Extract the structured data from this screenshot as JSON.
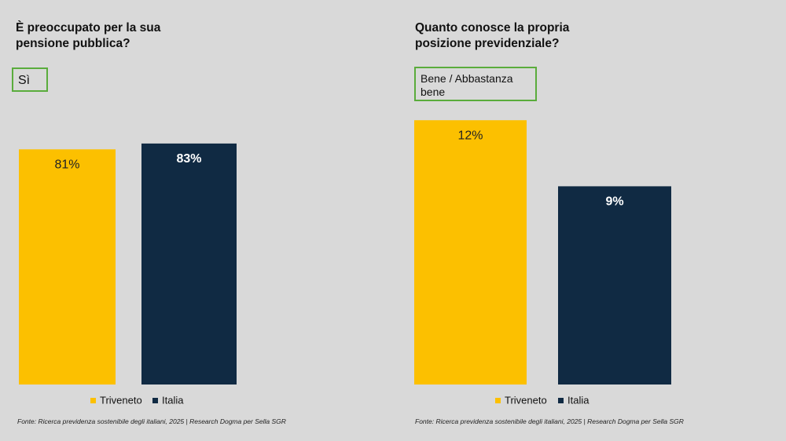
{
  "chart_data": [
    {
      "type": "bar",
      "title": "È preoccupato per la sua pensione pubblica?",
      "annotation": "Sì",
      "categories": [
        null
      ],
      "series": [
        {
          "name": "Triveneto",
          "color": "#fcc000",
          "values": [
            81
          ],
          "value_labels": [
            "81%"
          ]
        },
        {
          "name": "Italia",
          "color": "#102a43",
          "values": [
            83
          ],
          "value_labels": [
            "83%"
          ]
        }
      ],
      "ylim": [
        0,
        100
      ],
      "source": "Fonte: Ricerca previdenza sostenibile degli italiani, 2025 | Research Dogma per Sella SGR"
    },
    {
      "type": "bar",
      "title": "Quanto conosce la propria posizione previdenziale?",
      "annotation": "Bene / Abbastanza bene",
      "categories": [
        null
      ],
      "series": [
        {
          "name": "Triveneto",
          "color": "#fcc000",
          "values": [
            12
          ],
          "value_labels": [
            "12%"
          ]
        },
        {
          "name": "Italia",
          "color": "#102a43",
          "values": [
            9
          ],
          "value_labels": [
            "9%"
          ]
        }
      ],
      "ylim": [
        0,
        15
      ],
      "source": "Fonte: Ricerca previdenza sostenibile degli italiani, 2025 | Research Dogma per Sella SGR"
    }
  ]
}
